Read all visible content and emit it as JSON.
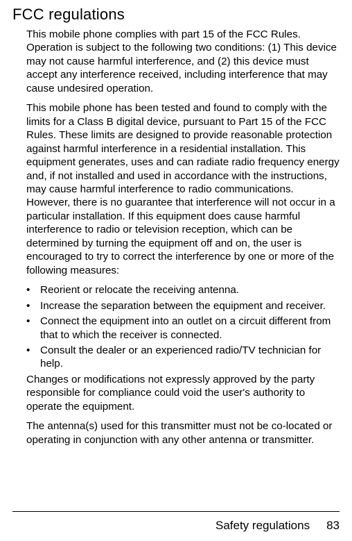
{
  "heading": "FCC regulations",
  "para1": "This mobile phone complies with part 15 of the FCC Rules. Operation is subject to the following two conditions: (1) This device may not cause harmful interference, and (2) this device must accept any interference received, including interference that may cause undesired operation.",
  "para2": "This mobile phone has been tested and found to comply with the limits for a Class B digital device, pursuant to Part 15 of the FCC Rules. These limits are designed to provide reasonable pro­tection against harmful interference in a residential installa­tion. This equipment generates, uses and can radiate radio frequency energy and, if not installed and used in accordance with the instructions, may cause harmful interference to radio communications. However, there is no guarantee that interfer­ence will not occur in a particular installation. If this equip­ment does cause harmful interference to radio or television reception, which can be determined by turning the equipment off and on, the user is encouraged to try to correct the inter­ference by one or more of the following measures:",
  "bullets": [
    "Reorient or relocate the receiving antenna.",
    "Increase the separation between the equipment and receiver.",
    "Connect the equipment into an outlet on a circuit dif­ferent from that to which the receiver is connected.",
    "Consult the dealer or an experienced radio/TV techni­cian for help."
  ],
  "para3": "Changes or modifications not expressly approved by the party responsible for compliance could void the user's authority to operate the equipment.",
  "para4": "The antenna(s) used for this transmitter must not be co-located or operating in conjunction with any other antenna or transmitter.",
  "footer_title": "Safety regulations",
  "footer_page": "83"
}
